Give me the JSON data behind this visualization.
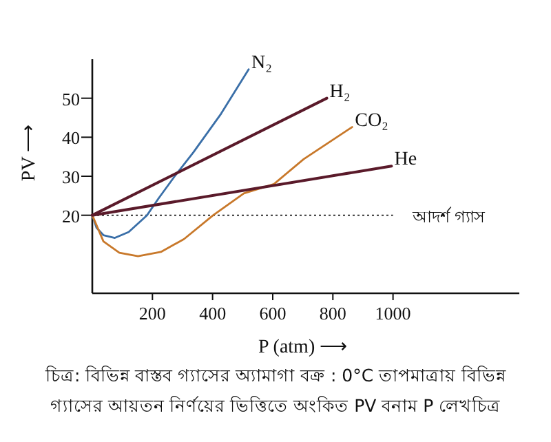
{
  "chart_data": {
    "type": "line",
    "xlabel": "P (atm) ⟶",
    "ylabel": "PV ⟶",
    "xlim": [
      0,
      1420
    ],
    "ylim": [
      0,
      60
    ],
    "xticks": [
      200,
      400,
      600,
      800,
      1000
    ],
    "yticks": [
      20,
      30,
      40,
      50
    ],
    "grid": false,
    "marker": "none",
    "line_style": "solid",
    "series": [
      {
        "name": "N₂",
        "color": "#3a6fa8",
        "x": [
          0,
          14,
          37,
          75,
          121,
          182,
          221,
          274,
          336,
          428,
          520
        ],
        "values": [
          20,
          16.8,
          14.9,
          14.2,
          15.7,
          20,
          24.4,
          30,
          36.1,
          46,
          57.4
        ]
      },
      {
        "name": "H₂",
        "color": "#5a1a2a",
        "x": [
          0,
          780
        ],
        "values": [
          20,
          50
        ]
      },
      {
        "name": "CO₂",
        "color": "#c8782a",
        "x": [
          0,
          37,
          90,
          152,
          228,
          305,
          402,
          504,
          604,
          703,
          864
        ],
        "values": [
          20,
          13.3,
          10.4,
          9.5,
          10.6,
          13.9,
          20,
          25.6,
          28,
          34.4,
          42.6
        ]
      },
      {
        "name": "He",
        "color": "#5a1a2a",
        "x": [
          0,
          995
        ],
        "values": [
          20,
          32.6
        ]
      }
    ],
    "ref_lines": [
      {
        "axis": "y",
        "value": 20,
        "label": "আদর্শ গ্যাস",
        "color": "#333333",
        "line_style": "dotted"
      }
    ],
    "annotations": [
      "চিত্র: বিভিন্ন বাস্তব গ্যাসের অ্যামাগা বক্র : 0°C তাপমাত্রায় বিভিন্ন গ্যাসের আয়তন নির্ণয়ের ভিত্তিতে অংকিত PV বনাম P লেখচিত্র"
    ]
  }
}
